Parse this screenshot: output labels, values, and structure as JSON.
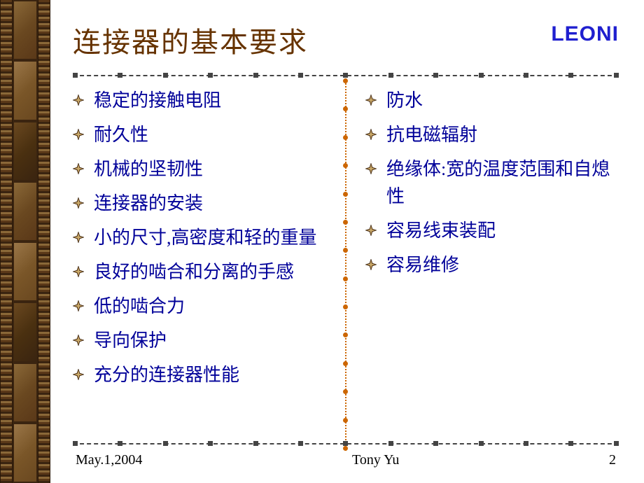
{
  "title": "连接器的基本要求",
  "brand": "LEONI",
  "colors": {
    "title": "#663300",
    "brand": "#1f1fcf",
    "bullet_text": "#000099",
    "divider": "#444444",
    "vertical_divider": "#cc6600"
  },
  "left_items": [
    "稳定的接触电阻",
    "耐久性",
    "机械的坚韧性",
    "连接器的安装",
    "小的尺寸,高密度和轻的重量",
    "良好的啮合和分离的手感",
    "低的啮合力",
    "导向保护",
    "充分的连接器性能"
  ],
  "right_items": [
    "防水",
    "抗电磁辐射",
    "绝缘体:宽的温度范围和自熄性",
    "容易线束装配",
    "容易维修"
  ],
  "footer": {
    "date": "May.1,2004",
    "author": "Tony Yu",
    "page": "2"
  }
}
